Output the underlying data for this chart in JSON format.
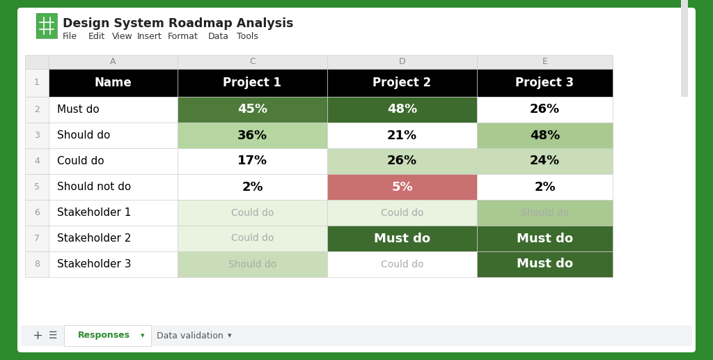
{
  "title": "Design System Roadmap Analysis",
  "menu_items": [
    "File",
    "Edit",
    "View",
    "Insert",
    "Format",
    "Data",
    "Tools"
  ],
  "col_letters": [
    "",
    "A",
    "C",
    "D",
    "E"
  ],
  "header_row": [
    "Name",
    "Project 1",
    "Project 2",
    "Project 3"
  ],
  "rows": [
    [
      "Must do",
      "45%",
      "48%",
      "26%"
    ],
    [
      "Should do",
      "36%",
      "21%",
      "48%"
    ],
    [
      "Could do",
      "17%",
      "26%",
      "24%"
    ],
    [
      "Should not do",
      "2%",
      "5%",
      "2%"
    ],
    [
      "Stakeholder 1",
      "Could do",
      "Could do",
      "Should do"
    ],
    [
      "Stakeholder 2",
      "Could do",
      "Must do",
      "Must do"
    ],
    [
      "Stakeholder 3",
      "Should do",
      "Could do",
      "Must do"
    ]
  ],
  "cell_colors": [
    [
      "#ffffff",
      "#4e7a3a",
      "#3d6b2e",
      "#ffffff"
    ],
    [
      "#ffffff",
      "#b5d6a0",
      "#ffffff",
      "#a8c990"
    ],
    [
      "#ffffff",
      "#ffffff",
      "#c8ddb8",
      "#c8ddb8"
    ],
    [
      "#ffffff",
      "#ffffff",
      "#c97070",
      "#ffffff"
    ],
    [
      "#ffffff",
      "#e8f3e0",
      "#e8f3e0",
      "#a8c990"
    ],
    [
      "#ffffff",
      "#e8f3e0",
      "#3d6b2e",
      "#3d6b2e"
    ],
    [
      "#ffffff",
      "#c8ddb8",
      "#ffffff",
      "#3d6b2e"
    ]
  ],
  "cell_text_colors": [
    [
      "#000000",
      "#ffffff",
      "#ffffff",
      "#000000"
    ],
    [
      "#000000",
      "#000000",
      "#000000",
      "#000000"
    ],
    [
      "#000000",
      "#000000",
      "#000000",
      "#000000"
    ],
    [
      "#000000",
      "#000000",
      "#ffffff",
      "#000000"
    ],
    [
      "#000000",
      "#aaaaaa",
      "#aaaaaa",
      "#aaaaaa"
    ],
    [
      "#000000",
      "#aaaaaa",
      "#ffffff",
      "#ffffff"
    ],
    [
      "#000000",
      "#aaaaaa",
      "#aaaaaa",
      "#ffffff"
    ]
  ],
  "cell_font_bold": [
    [
      false,
      true,
      true,
      true
    ],
    [
      false,
      true,
      true,
      true
    ],
    [
      false,
      true,
      true,
      true
    ],
    [
      false,
      true,
      true,
      true
    ],
    [
      false,
      false,
      false,
      false
    ],
    [
      false,
      false,
      true,
      true
    ],
    [
      false,
      false,
      false,
      true
    ]
  ],
  "outer_bg": "#2d8a2d",
  "header_bg": "#000000",
  "header_text": "#ffffff",
  "col_header_bg": "#e8e8e8",
  "col_header_text": "#888888",
  "row_num_bg": "#f5f5f5",
  "row_num_text": "#999999",
  "grid_color": "#d0d0d0",
  "tab_green": "#2d8a2d",
  "scrollbar_track": "#e0e0e0",
  "scrollbar_thumb": "#bdbdbd"
}
